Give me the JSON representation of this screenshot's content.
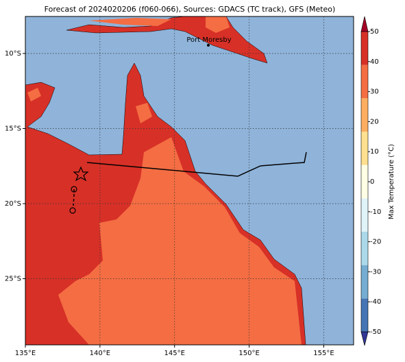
{
  "title": "Forecast of 2024020206 (f060-066), Sources: GDACS (TC track), GFS (Meteo)",
  "place": "Port Moresby",
  "lon_ticks": [
    {
      "value": 135,
      "label": "135°E"
    },
    {
      "value": 140,
      "label": "140°E"
    },
    {
      "value": 145,
      "label": "145°E"
    },
    {
      "value": 150,
      "label": "150°E"
    },
    {
      "value": 155,
      "label": "155°E"
    }
  ],
  "lat_ticks": [
    {
      "value": -10,
      "label": "10°S"
    },
    {
      "value": -15,
      "label": "15°S"
    },
    {
      "value": -20,
      "label": "20°S"
    },
    {
      "value": -25,
      "label": "25°S"
    }
  ],
  "colorbar": {
    "label": "Max Temperature (°C)",
    "lim": [
      -50,
      50
    ],
    "ticks": [
      -50,
      -40,
      -30,
      -20,
      -10,
      0,
      10,
      20,
      30,
      40,
      50
    ],
    "colors": [
      "#313695",
      "#4575b4",
      "#74add1",
      "#abd9e9",
      "#e0f3f8",
      "#ffffe5",
      "#fee090",
      "#fdae61",
      "#f46d43",
      "#d73027",
      "#a50026"
    ]
  }
}
